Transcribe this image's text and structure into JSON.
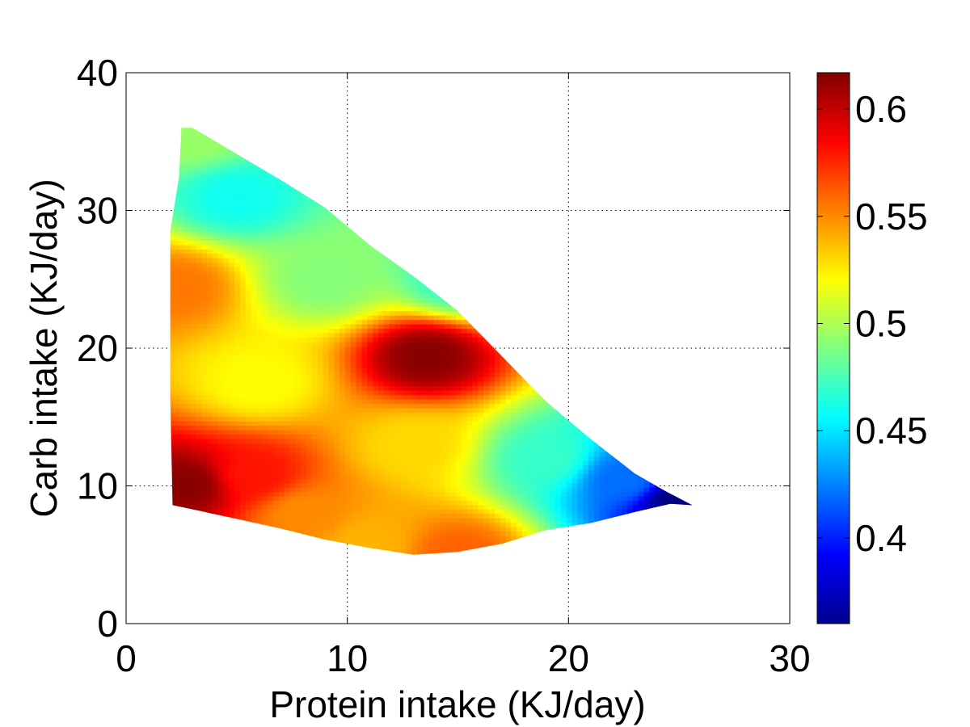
{
  "chart_data": {
    "type": "heatmap",
    "title": "",
    "xlabel": "Protein intake (KJ/day)",
    "ylabel": "Carb intake (KJ/day)",
    "xlim": [
      0,
      30
    ],
    "ylim": [
      0,
      40
    ],
    "xticks": [
      0,
      10,
      20,
      30
    ],
    "yticks": [
      0,
      10,
      20,
      30,
      40
    ],
    "grid": true,
    "grid_style": "dotted",
    "colormap": "jet",
    "colorbar": {
      "range": [
        0.36,
        0.617
      ],
      "ticks": [
        0.4,
        0.45,
        0.5,
        0.55,
        0.6
      ],
      "tick_labels": [
        "0.4",
        "0.45",
        "0.5",
        "0.55",
        "0.6"
      ],
      "placement": "right"
    },
    "region_boundary": [
      [
        2.1,
        8.6
      ],
      [
        3,
        8.3
      ],
      [
        5,
        7.6
      ],
      [
        7,
        6.9
      ],
      [
        9,
        6.1
      ],
      [
        11,
        5.5
      ],
      [
        13,
        5.0
      ],
      [
        15,
        5.2
      ],
      [
        17,
        5.8
      ],
      [
        19,
        6.8
      ],
      [
        21,
        7.3
      ],
      [
        23,
        8.1
      ],
      [
        24.6,
        8.7
      ],
      [
        25.6,
        8.6
      ],
      [
        24.4,
        9.6
      ],
      [
        23,
        10.9
      ],
      [
        21,
        13.4
      ],
      [
        19,
        16.1
      ],
      [
        17,
        19.4
      ],
      [
        15,
        22.7
      ],
      [
        13,
        25.2
      ],
      [
        11,
        27.5
      ],
      [
        9,
        30.2
      ],
      [
        7,
        32.2
      ],
      [
        5,
        34.1
      ],
      [
        3,
        36.0
      ],
      [
        2.5,
        36.0
      ],
      [
        2.4,
        32.5
      ],
      [
        2.0,
        28.5
      ],
      [
        2.0,
        16.3
      ],
      [
        2.1,
        8.6
      ]
    ],
    "surface_peaks": [
      {
        "x": 13.6,
        "y": 19.4,
        "value": 0.615
      },
      {
        "x": 2.7,
        "y": 10.1,
        "value": 0.615
      },
      {
        "x": 5.8,
        "y": 10.8,
        "value": 0.58
      },
      {
        "x": 2.2,
        "y": 24.5,
        "value": 0.555
      },
      {
        "x": 15.0,
        "y": 5.2,
        "value": 0.56
      },
      {
        "x": 11.0,
        "y": 6.0,
        "value": 0.54
      },
      {
        "x": 8.0,
        "y": 8.0,
        "value": 0.55
      },
      {
        "x": 13.0,
        "y": 13.0,
        "value": 0.53
      },
      {
        "x": 6.0,
        "y": 17.5,
        "value": 0.52
      },
      {
        "x": 9.0,
        "y": 25.0,
        "value": 0.49
      },
      {
        "x": 5.0,
        "y": 31.0,
        "value": 0.46
      },
      {
        "x": 3.0,
        "y": 35.5,
        "value": 0.495
      },
      {
        "x": 15.0,
        "y": 25.0,
        "value": 0.47
      },
      {
        "x": 19.0,
        "y": 12.0,
        "value": 0.47
      },
      {
        "x": 22.5,
        "y": 10.5,
        "value": 0.42
      },
      {
        "x": 25.0,
        "y": 8.8,
        "value": 0.36
      }
    ]
  }
}
